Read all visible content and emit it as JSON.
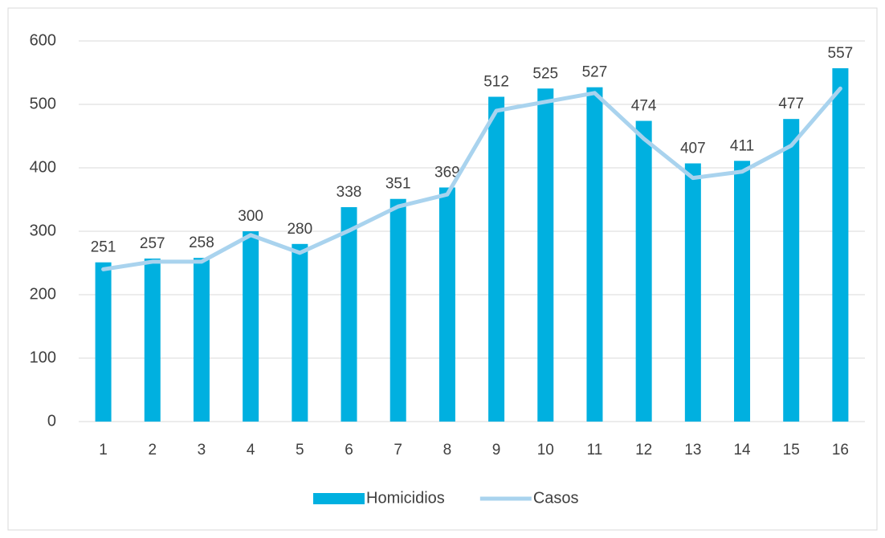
{
  "chart_data": {
    "type": "bar",
    "categories": [
      "1",
      "2",
      "3",
      "4",
      "5",
      "6",
      "7",
      "8",
      "9",
      "10",
      "11",
      "12",
      "13",
      "14",
      "15",
      "16"
    ],
    "series": [
      {
        "name": "Homicidios",
        "type": "bar",
        "color": "#00b0e0",
        "values": [
          251,
          257,
          258,
          300,
          280,
          338,
          351,
          369,
          512,
          525,
          527,
          474,
          407,
          411,
          477,
          557
        ]
      },
      {
        "name": "Casos",
        "type": "line",
        "color": "#a9d3ee",
        "values": [
          240,
          252,
          252,
          294,
          266,
          301,
          339,
          358,
          490,
          504,
          518,
          446,
          384,
          394,
          435,
          525
        ]
      }
    ],
    "ylim": [
      0,
      600
    ],
    "yticks": [
      0,
      100,
      200,
      300,
      400,
      500,
      600
    ],
    "grid": true,
    "legend": "bottom"
  }
}
